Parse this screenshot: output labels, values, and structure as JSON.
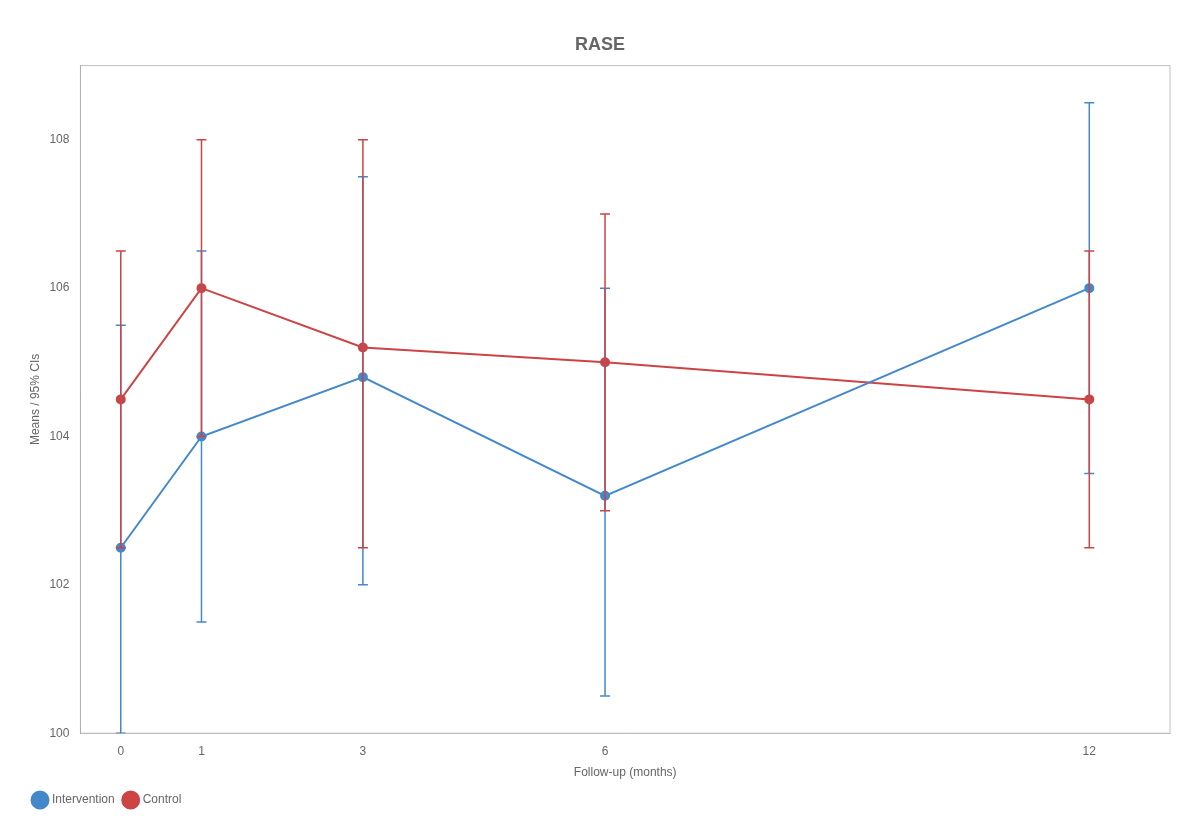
{
  "chart_data": {
    "type": "line",
    "title": "RASE",
    "x_label": "Follow-up (months)",
    "y_label": "Means / 95% CIs",
    "x": [
      0,
      1,
      3,
      6,
      12
    ],
    "series": [
      {
        "name": "Intervention",
        "color": "#4488cc",
        "marker": "circle",
        "values": [
          102.5,
          104.0,
          104.8,
          103.2,
          106.0
        ],
        "low": [
          100.0,
          101.5,
          102.0,
          100.5,
          103.5
        ],
        "high": [
          105.5,
          106.5,
          107.5,
          106.0,
          108.5
        ]
      },
      {
        "name": "Control",
        "color": "#cc4444",
        "marker": "circle",
        "values": [
          104.5,
          106.0,
          105.2,
          105.0,
          104.5
        ],
        "low": [
          102.5,
          104.0,
          102.5,
          103.0,
          102.5
        ],
        "high": [
          106.5,
          108.0,
          108.0,
          107.0,
          106.5
        ]
      }
    ],
    "xlim": [
      -0.5,
      13
    ],
    "xticks": [
      0,
      1,
      3,
      6,
      12
    ],
    "ylim": [
      100,
      109
    ],
    "yticks": [
      100,
      102,
      104,
      106,
      108
    ],
    "grid": false,
    "legend": "lower left"
  }
}
